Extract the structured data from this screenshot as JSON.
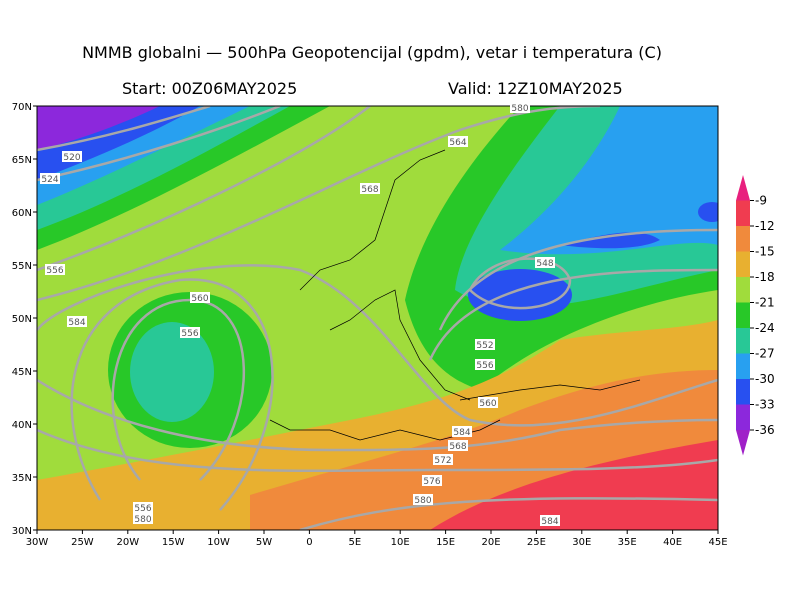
{
  "header": {
    "title": "NMMB globalni — 500hPa Geopotencijal (gpdm), vetar i temperatura (C)",
    "start": "Start: 00Z06MAY2025",
    "valid": "Valid: 12Z10MAY2025"
  },
  "map": {
    "lon_labels": [
      "30W",
      "25W",
      "20W",
      "15W",
      "10W",
      "5W",
      "0",
      "5E",
      "10E",
      "15E",
      "20E",
      "25E",
      "30E",
      "35E",
      "40E",
      "45E"
    ],
    "lat_labels": [
      "70N",
      "65N",
      "60N",
      "55N",
      "50N",
      "45N",
      "40N",
      "35N",
      "30N"
    ],
    "contour_labels": [
      "580",
      "520",
      "524",
      "564",
      "568",
      "556",
      "548",
      "560",
      "584",
      "556",
      "552",
      "556",
      "560",
      "584",
      "568",
      "572",
      "576",
      "580",
      "556",
      "580",
      "584"
    ]
  },
  "colorbar": {
    "labels": [
      "-9",
      "-12",
      "-15",
      "-18",
      "-21",
      "-24",
      "-27",
      "-30",
      "-33",
      "-36"
    ],
    "colors": [
      "#e8207e",
      "#f03c50",
      "#f08a3c",
      "#e8b030",
      "#a0dc3c",
      "#28c828",
      "#28c896",
      "#28a0f0",
      "#2850f0",
      "#8c28dc",
      "#a020c8"
    ]
  }
}
